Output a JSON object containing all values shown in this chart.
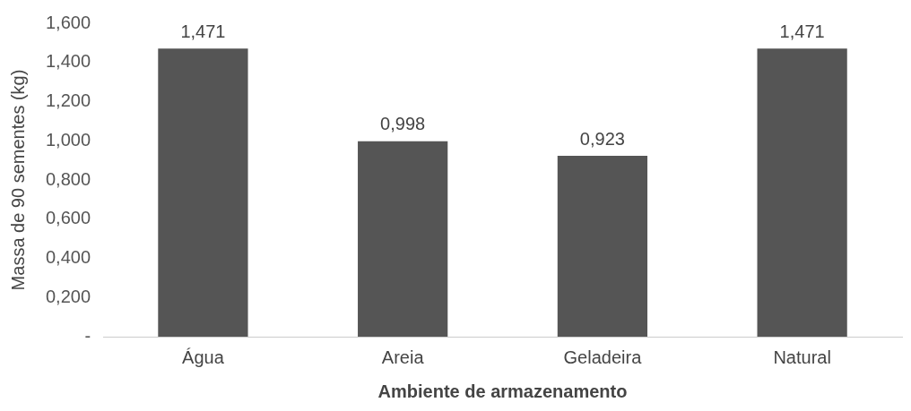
{
  "chart_data": {
    "type": "bar",
    "xlabel": "Ambiente de armazenamento",
    "ylabel": "Massa de 90 sementes (kg)",
    "categories": [
      "Água",
      "Areia",
      "Geladeira",
      "Natural"
    ],
    "values": [
      1.471,
      0.998,
      0.923,
      1.471
    ],
    "value_labels": [
      "1,471",
      "0,998",
      "0,923",
      "1,471"
    ],
    "color": "#555555",
    "ylim": [
      0,
      1.6
    ],
    "yticks": [
      {
        "value": 0,
        "label": "-"
      },
      {
        "value": 0.2,
        "label": "0,200"
      },
      {
        "value": 0.4,
        "label": "0,400"
      },
      {
        "value": 0.6,
        "label": "0,600"
      },
      {
        "value": 0.8,
        "label": "0,800"
      },
      {
        "value": 1.0,
        "label": "1,000"
      },
      {
        "value": 1.2,
        "label": "1,200"
      },
      {
        "value": 1.4,
        "label": "1,400"
      },
      {
        "value": 1.6,
        "label": "1,600"
      }
    ],
    "grid": false,
    "legend": false
  }
}
